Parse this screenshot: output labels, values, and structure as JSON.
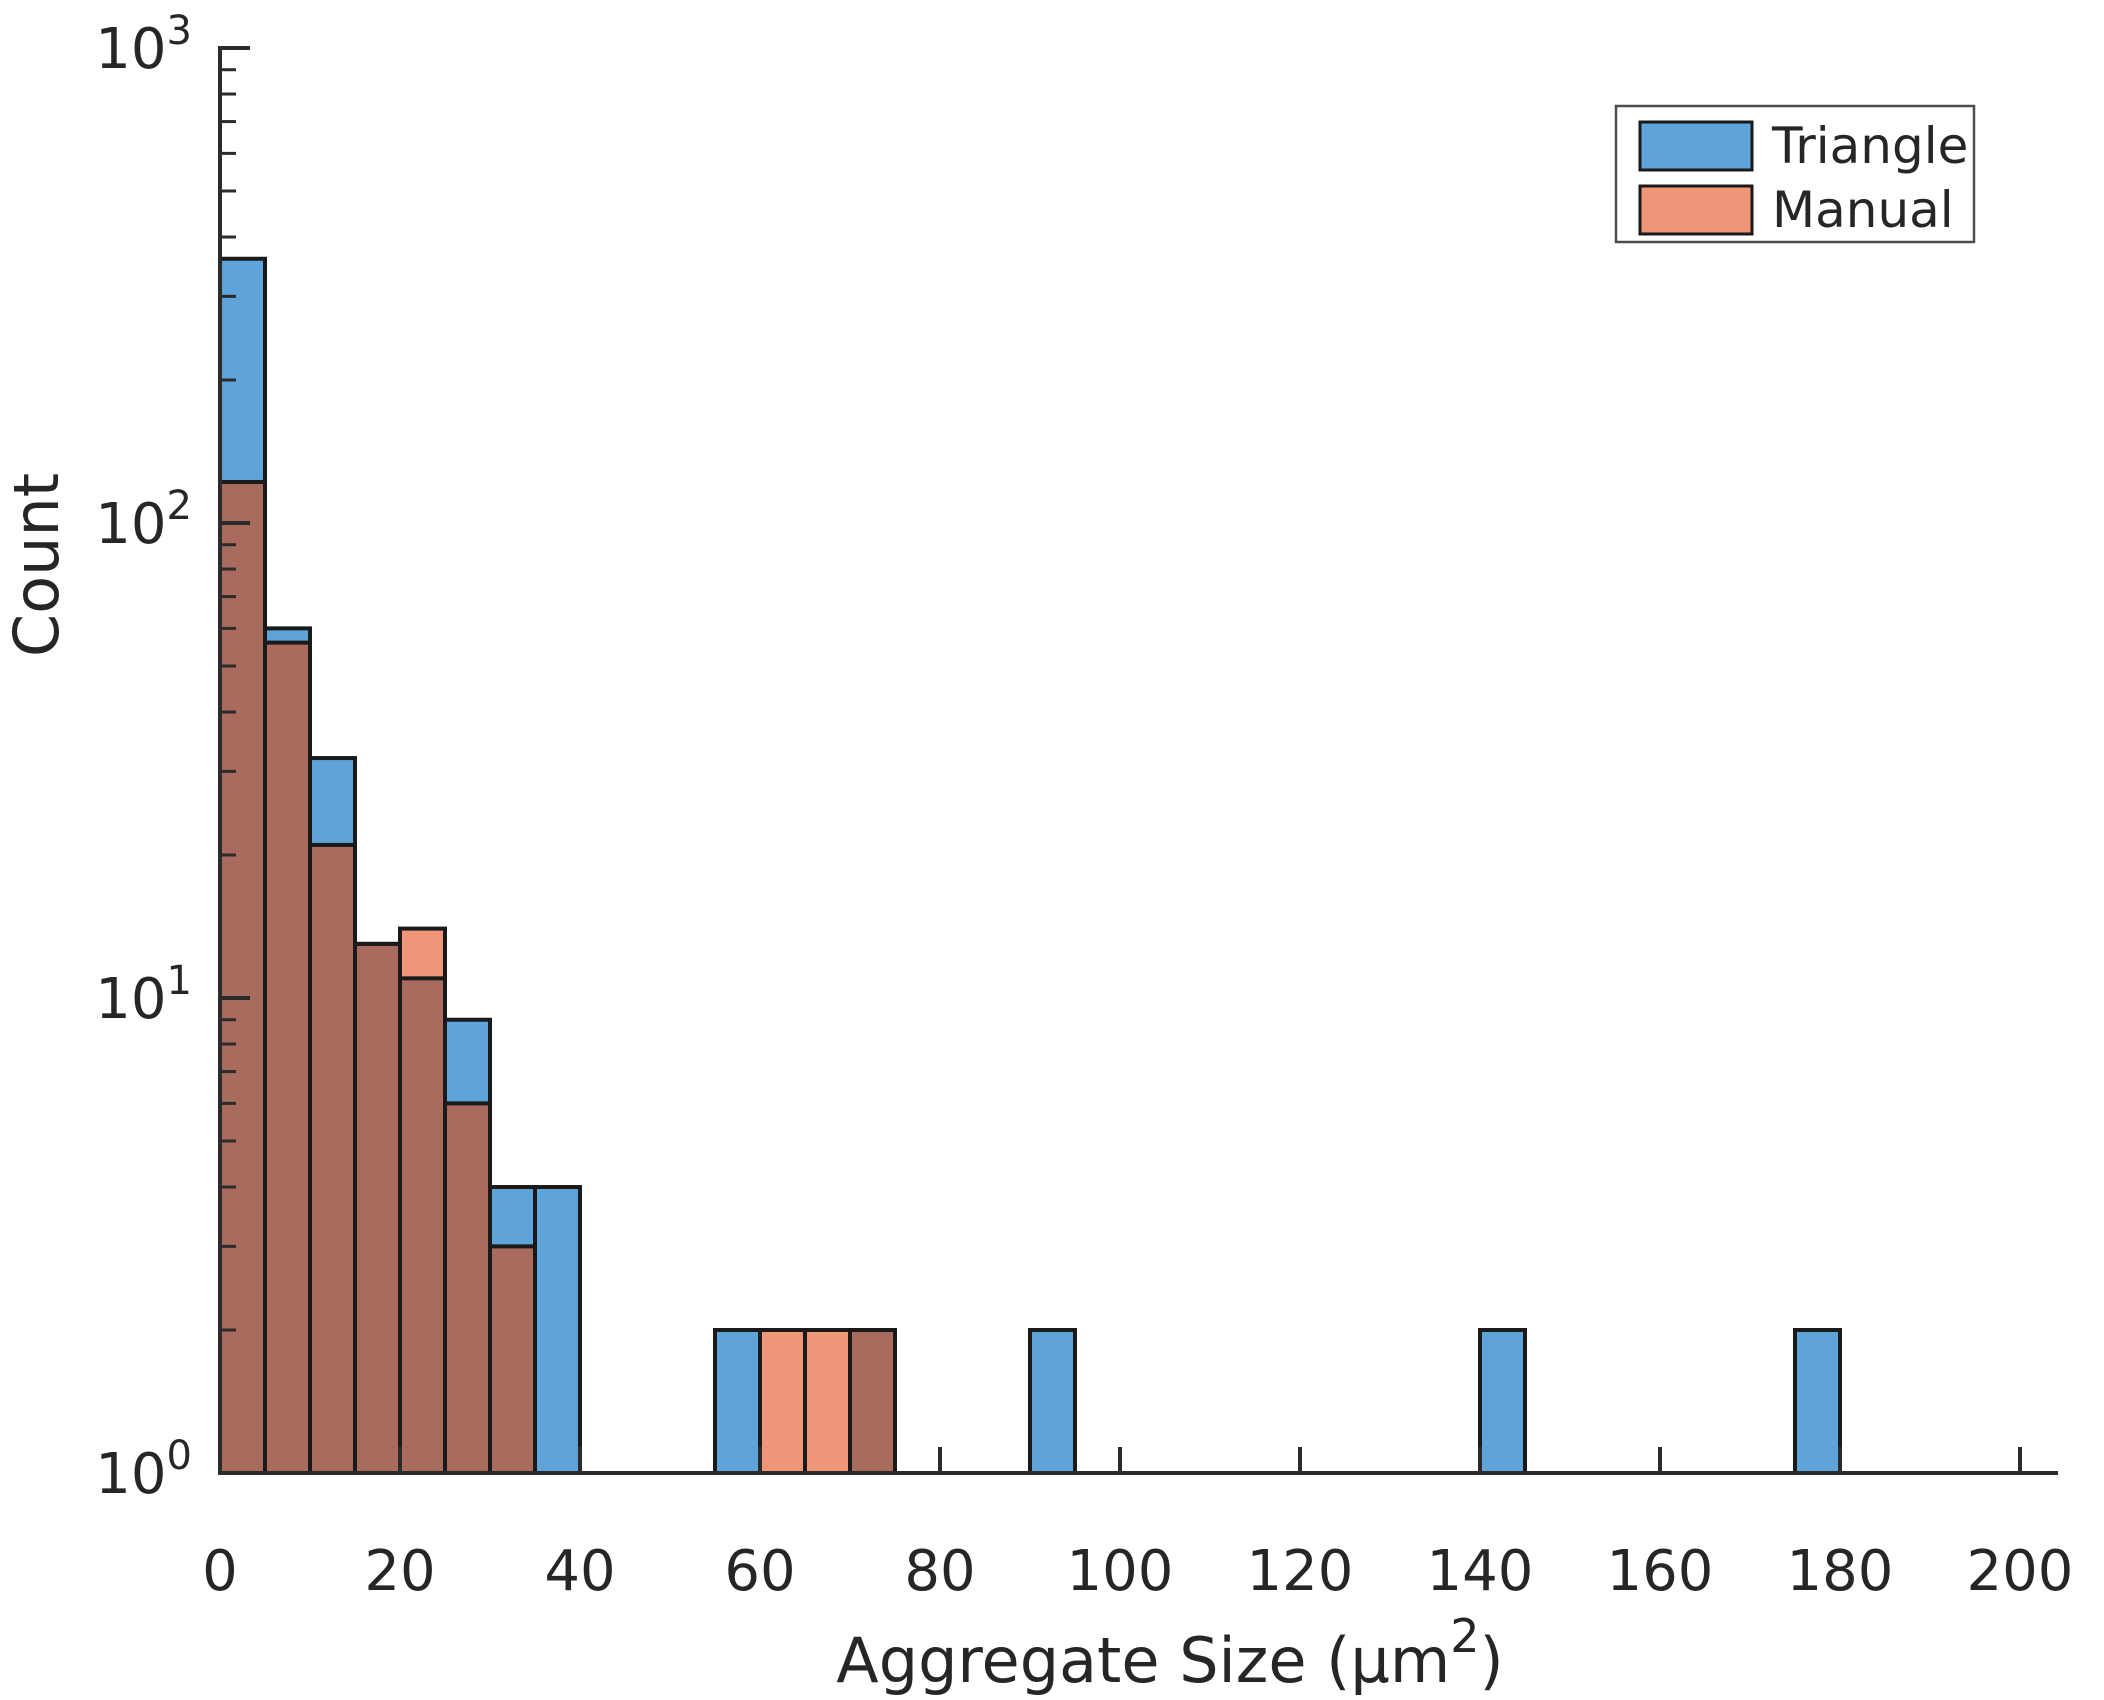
{
  "figure": {
    "background": "#ffffff",
    "text_color": "#262626",
    "axis_color": "#2b2b2b",
    "bar_edge_color": "#1a1a1a",
    "legend_border_color": "#4d4d4d"
  },
  "chart_data": {
    "type": "bar",
    "subtype": "overlaid-histogram",
    "title": "",
    "xlabel_parts": {
      "pre": "Aggregate Size (μm",
      "sup": "2",
      "post": ")"
    },
    "ylabel": "Count",
    "y_scale": "log",
    "ylim": [
      1,
      1000
    ],
    "xlim": [
      0,
      204
    ],
    "bin_width": 5,
    "grid": false,
    "legend_position": "top-right",
    "x_ticks": [
      0,
      20,
      40,
      60,
      80,
      100,
      120,
      140,
      160,
      180,
      200
    ],
    "y_ticks": [
      {
        "base": "10",
        "exp": "0",
        "value": 1
      },
      {
        "base": "10",
        "exp": "1",
        "value": 10
      },
      {
        "base": "10",
        "exp": "2",
        "value": 100
      },
      {
        "base": "10",
        "exp": "3",
        "value": 1000
      }
    ],
    "overlap_color": "#A96B5E",
    "series": [
      {
        "name": "Triangle",
        "color": "#5EA4D8",
        "bins": [
          {
            "x0": 0,
            "count": 360
          },
          {
            "x0": 5,
            "count": 60
          },
          {
            "x0": 10,
            "count": 32
          },
          {
            "x0": 15,
            "count": 13
          },
          {
            "x0": 20,
            "count": 11
          },
          {
            "x0": 25,
            "count": 9
          },
          {
            "x0": 30,
            "count": 4
          },
          {
            "x0": 35,
            "count": 4
          },
          {
            "x0": 55,
            "count": 2
          },
          {
            "x0": 70,
            "count": 2
          },
          {
            "x0": 90,
            "count": 2
          },
          {
            "x0": 140,
            "count": 2
          },
          {
            "x0": 175,
            "count": 2
          }
        ]
      },
      {
        "name": "Manual",
        "color": "#EF9678",
        "bins": [
          {
            "x0": 0,
            "count": 122
          },
          {
            "x0": 5,
            "count": 56
          },
          {
            "x0": 10,
            "count": 21
          },
          {
            "x0": 15,
            "count": 13
          },
          {
            "x0": 20,
            "count": 14
          },
          {
            "x0": 25,
            "count": 6
          },
          {
            "x0": 30,
            "count": 3
          },
          {
            "x0": 60,
            "count": 2
          },
          {
            "x0": 65,
            "count": 2
          },
          {
            "x0": 70,
            "count": 2
          }
        ]
      }
    ]
  },
  "legend": {
    "items": [
      {
        "label": "Triangle",
        "color": "#5EA4D8"
      },
      {
        "label": "Manual",
        "color": "#EF9678"
      }
    ]
  }
}
